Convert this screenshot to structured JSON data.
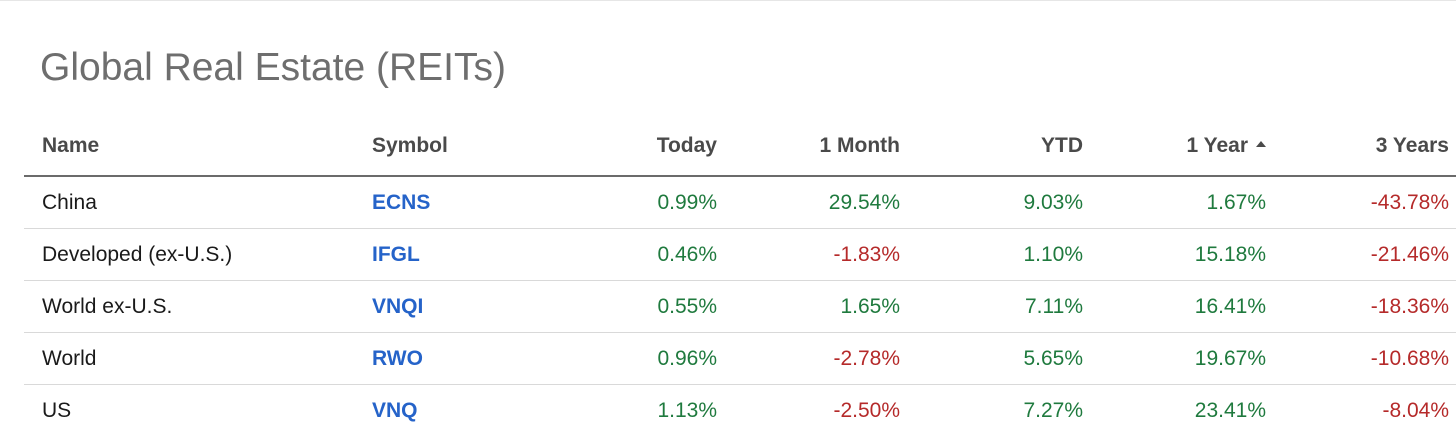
{
  "title": "Global Real Estate (REITs)",
  "columns": {
    "name": "Name",
    "symbol": "Symbol",
    "today": "Today",
    "month": "1 Month",
    "ytd": "YTD",
    "year": "1 Year",
    "years3": "3 Years"
  },
  "sort": {
    "column": "year",
    "direction": "ascending",
    "icon": "sort-up-icon"
  },
  "colors": {
    "positive": "#1f7a3e",
    "negative": "#b52a2a",
    "link": "#2563c9"
  },
  "rows": [
    {
      "name": "China",
      "symbol": "ECNS",
      "today": "0.99%",
      "month": "29.54%",
      "ytd": "9.03%",
      "year": "1.67%",
      "years3": "-43.78%"
    },
    {
      "name": "Developed (ex-U.S.)",
      "symbol": "IFGL",
      "today": "0.46%",
      "month": "-1.83%",
      "ytd": "1.10%",
      "year": "15.18%",
      "years3": "-21.46%"
    },
    {
      "name": "World ex-U.S.",
      "symbol": "VNQI",
      "today": "0.55%",
      "month": "1.65%",
      "ytd": "7.11%",
      "year": "16.41%",
      "years3": "-18.36%"
    },
    {
      "name": "World",
      "symbol": "RWO",
      "today": "0.96%",
      "month": "-2.78%",
      "ytd": "5.65%",
      "year": "19.67%",
      "years3": "-10.68%"
    },
    {
      "name": "US",
      "symbol": "VNQ",
      "today": "1.13%",
      "month": "-2.50%",
      "ytd": "7.27%",
      "year": "23.41%",
      "years3": "-8.04%"
    }
  ]
}
